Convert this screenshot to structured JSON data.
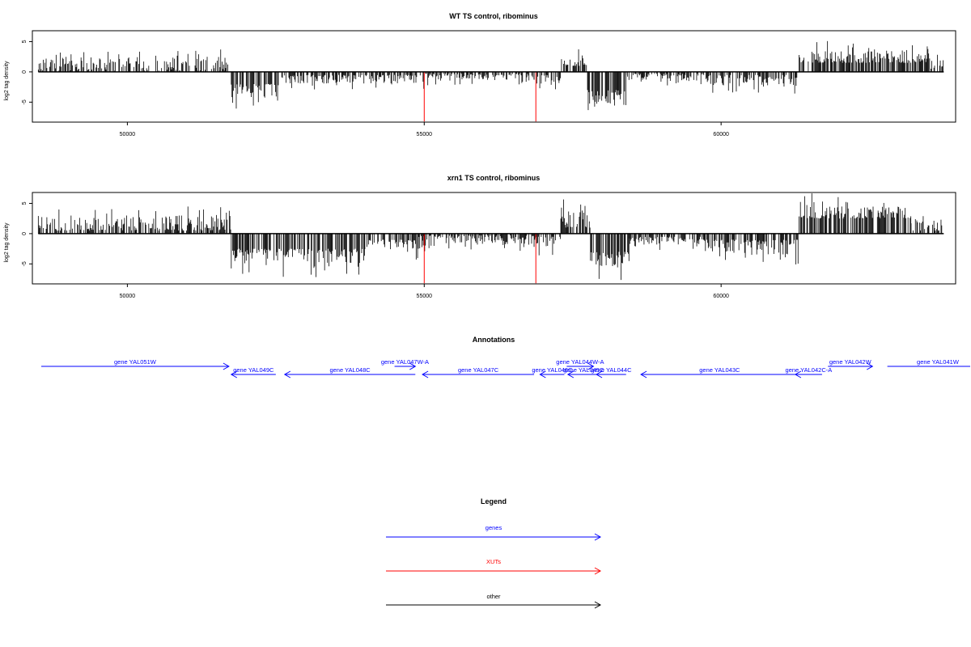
{
  "chart_data": [
    {
      "type": "bar",
      "title": "WT TS control, ribominus",
      "ylabel": "log2 tag density",
      "xlim": [
        48400,
        63950
      ],
      "ylim": [
        -8.3,
        6.8
      ],
      "xticks": [
        50000,
        55000,
        60000
      ],
      "yticks": [
        -5,
        0,
        5
      ],
      "ytick_labels": [
        "-5",
        "0",
        "5"
      ],
      "highlight_color": "#ff0000",
      "series": [
        {
          "color": "#000000",
          "segments": [
            [
              48500,
              51700,
              0,
              2.5
            ],
            [
              51750,
              52600,
              -2.0,
              -4.5
            ],
            [
              52600,
              53900,
              -0.5,
              -2.0
            ],
            [
              53900,
              55000,
              -0.5,
              -2.0
            ],
            [
              55000,
              56850,
              -0.3,
              -1.5
            ],
            [
              56850,
              57300,
              -0.5,
              -2.0
            ],
            [
              57300,
              57750,
              1.0,
              2.5
            ],
            [
              57750,
              58400,
              -3.0,
              -5.5
            ],
            [
              58400,
              59800,
              -0.3,
              -1.5
            ],
            [
              59800,
              61300,
              -0.5,
              -2.5
            ],
            [
              61300,
              63500,
              1.5,
              3.5
            ],
            [
              63500,
              63750,
              0.5,
              2.0
            ]
          ]
        },
        {
          "color": "#ff0000",
          "points": [
            [
              55000,
              -8.2
            ],
            [
              56880,
              -8.2
            ]
          ]
        }
      ]
    },
    {
      "type": "bar",
      "title": "xrn1 TS control, ribominus",
      "ylabel": "log2 tag density",
      "xlim": [
        48400,
        63950
      ],
      "ylim": [
        -8.3,
        6.8
      ],
      "xticks": [
        50000,
        55000,
        60000
      ],
      "yticks": [
        -5,
        0,
        5
      ],
      "ytick_labels": [
        "-5",
        "0",
        "5"
      ],
      "highlight_color": "#ff0000",
      "series": [
        {
          "color": "#000000",
          "segments": [
            [
              48500,
              51750,
              0.5,
              3.0
            ],
            [
              51750,
              54000,
              -2.5,
              -5.0
            ],
            [
              54000,
              54900,
              -1.0,
              -3.0
            ],
            [
              54900,
              56850,
              -0.3,
              -2.0
            ],
            [
              56850,
              57300,
              -0.5,
              -2.5
            ],
            [
              57300,
              57800,
              1.0,
              4.0
            ],
            [
              57800,
              58450,
              -3.0,
              -5.5
            ],
            [
              58450,
              59700,
              -0.5,
              -1.8
            ],
            [
              59700,
              61300,
              -1.0,
              -3.5
            ],
            [
              61300,
              63200,
              2.5,
              4.5
            ],
            [
              63200,
              63750,
              0.5,
              2.5
            ]
          ]
        },
        {
          "color": "#ff0000",
          "points": [
            [
              55000,
              -8.2
            ],
            [
              56880,
              -8.2
            ]
          ]
        }
      ]
    }
  ],
  "annotations": {
    "title": "Annotations",
    "genes": [
      {
        "label": "gene YAL051W",
        "start": 48550,
        "end": 51710,
        "row": 0,
        "strand": "+"
      },
      {
        "label": "gene YAL049C",
        "start": 51750,
        "end": 52500,
        "row": 1,
        "strand": "-"
      },
      {
        "label": "gene YAL048C",
        "start": 52650,
        "end": 54850,
        "row": 1,
        "strand": "-"
      },
      {
        "label": "gene YAL047W-A",
        "start": 54500,
        "end": 54850,
        "row": 0,
        "strand": "+"
      },
      {
        "label": "gene YAL047C",
        "start": 54970,
        "end": 56850,
        "row": 1,
        "strand": "-"
      },
      {
        "label": "gene YAL046C",
        "start": 56950,
        "end": 57360,
        "row": 1,
        "strand": "-"
      },
      {
        "label": "gene YAL044W-A",
        "start": 57400,
        "end": 57850,
        "row": 0,
        "strand": "+"
      },
      {
        "label": "gene YAL045C",
        "start": 57420,
        "end": 57950,
        "row": 1,
        "strand": "-"
      },
      {
        "label": "gene YAL044C",
        "start": 57900,
        "end": 58400,
        "row": 1,
        "strand": "-"
      },
      {
        "label": "gene YAL043C",
        "start": 58650,
        "end": 61300,
        "row": 1,
        "strand": "-"
      },
      {
        "label": "gene YAL042C-A",
        "start": 61250,
        "end": 61700,
        "row": 1,
        "strand": "-"
      },
      {
        "label": "gene YAL042W",
        "start": 61800,
        "end": 62550,
        "row": 0,
        "strand": "+"
      },
      {
        "label": "gene YAL041W",
        "start": 62800,
        "end": 64500,
        "row": 0,
        "strand": "+"
      }
    ]
  },
  "legend": {
    "title": "Legend",
    "items": [
      {
        "label": "genes",
        "color": "#0000ff"
      },
      {
        "label": "XUTs",
        "color": "#ff0000"
      },
      {
        "label": "other",
        "color": "#000000"
      }
    ]
  }
}
